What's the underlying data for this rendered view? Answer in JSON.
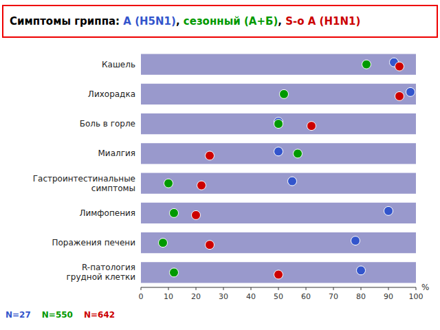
{
  "chart_data": {
    "type": "dot",
    "orientation": "horizontal",
    "title": "Симптомы гриппа: А (H5N1), сезонный (А+Б), S-о А (H1N1)",
    "xlabel": "%",
    "categories": [
      "Кашель",
      "Лихорадка",
      "Боль в горле",
      "Миалгия",
      "Гастроинтестинальные\nсимптомы",
      "Лимфопения",
      "Поражения печени",
      "R-патология\nгрудной клетки"
    ],
    "series": [
      {
        "name": "А (H5N1)",
        "color": "#3355CC",
        "values": [
          92,
          98,
          50,
          50,
          55,
          90,
          78,
          80
        ]
      },
      {
        "name": "сезонный (А+Б)",
        "color": "#009900",
        "values": [
          82,
          52,
          50,
          57,
          10,
          12,
          8,
          12
        ]
      },
      {
        "name": "S-о А (H1N1)",
        "color": "#CC0000",
        "values": [
          94,
          94,
          62,
          25,
          22,
          20,
          25,
          50
        ]
      }
    ],
    "annotations": [
      {
        "text": "N=27",
        "color": "#3355CC"
      },
      {
        "text": "N=550",
        "color": "#009900"
      },
      {
        "text": "N=642",
        "color": "#CC0000"
      }
    ],
    "xlim": [
      0,
      100
    ],
    "xticks": [
      0,
      10,
      20,
      30,
      40,
      50,
      60,
      70,
      80,
      90,
      100
    ]
  }
}
